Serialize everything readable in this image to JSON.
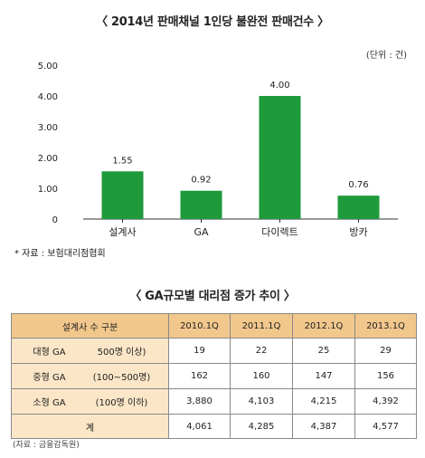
{
  "chart_data": {
    "type": "bar",
    "title": "〈 2014년 판매채널 1인당 불완전 판매건수 〉",
    "unit_label": "(단위 : 건)",
    "categories": [
      "설계사",
      "GA",
      "다이렉트",
      "방카"
    ],
    "values": [
      1.55,
      0.92,
      4.0,
      0.76
    ],
    "value_labels": [
      "1.55",
      "0.92",
      "4.00",
      "0.76"
    ],
    "ylim": [
      0,
      5
    ],
    "yticks": [
      0,
      1,
      2,
      3,
      4,
      5
    ],
    "ytick_labels": [
      "0",
      "1.00",
      "2.00",
      "3.00",
      "4.00",
      "5.00"
    ],
    "bar_color": "#1e9a3a",
    "grid": false,
    "source": "* 자료 : 보험대리점협회"
  },
  "table": {
    "title": "〈 GA규모별 대리점 증가 추이 〉",
    "header": {
      "label": "설계사 수 구분",
      "periods": [
        "2010.1Q",
        "2011.1Q",
        "2012.1Q",
        "2013.1Q"
      ]
    },
    "rows": [
      {
        "name": "대형 GA",
        "range": "500명 이상)",
        "values": [
          "19",
          "22",
          "25",
          "29"
        ]
      },
      {
        "name": "중형 GA",
        "range": "(100~500명)",
        "values": [
          "162",
          "160",
          "147",
          "156"
        ]
      },
      {
        "name": "소형 GA",
        "range": "(100명 이하)",
        "values": [
          "3,880",
          "4,103",
          "4,215",
          "4,392"
        ]
      }
    ],
    "total": {
      "label": "계",
      "values": [
        "4,061",
        "4,285",
        "4,387",
        "4,577"
      ]
    },
    "source": "(자료 : 금융감독원)",
    "header_color": "#f2c78c",
    "label_color": "#fbe6c8"
  }
}
